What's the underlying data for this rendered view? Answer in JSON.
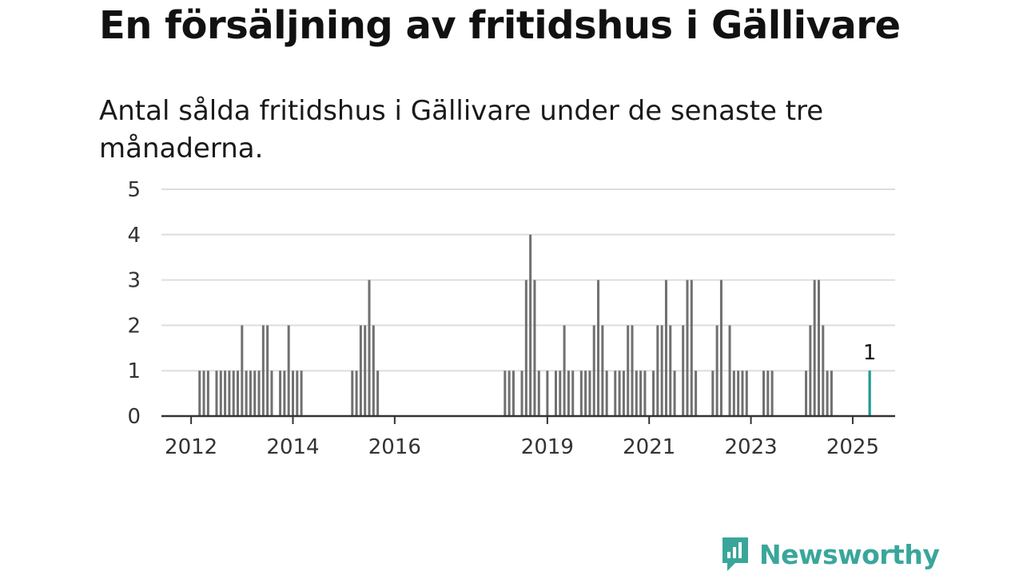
{
  "header": {
    "title": "En försäljning av fritidshus i Gällivare",
    "subtitle": "Antal sålda fritidshus i Gällivare under de senaste tre månaderna."
  },
  "brand": {
    "name": "Newsworthy",
    "icon": "newsworthy-logo-icon",
    "color": "#3aa69b"
  },
  "colors": {
    "bar": "#707070",
    "highlight": "#1a9c95",
    "grid": "#dddddd",
    "axis": "#333333"
  },
  "chart_data": {
    "type": "bar",
    "title": "",
    "xlabel": "",
    "ylabel": "",
    "ylim": [
      0,
      5
    ],
    "yticks": [
      "0",
      "1",
      "2",
      "3",
      "4",
      "5"
    ],
    "xlim": [
      "2011-06",
      "2025-11"
    ],
    "xticks": [
      {
        "label": "2012",
        "date": "2012-01"
      },
      {
        "label": "2014",
        "date": "2014-01"
      },
      {
        "label": "2016",
        "date": "2016-01"
      },
      {
        "label": "2019",
        "date": "2019-01"
      },
      {
        "label": "2021",
        "date": "2021-01"
      },
      {
        "label": "2023",
        "date": "2023-01"
      },
      {
        "label": "2025",
        "date": "2025-01"
      }
    ],
    "grid": true,
    "legend": "none",
    "highlight": {
      "date": "2025-05",
      "value": 1,
      "label": "1"
    },
    "x": [
      "2012-03",
      "2012-04",
      "2012-05",
      "2012-07",
      "2012-08",
      "2012-09",
      "2012-10",
      "2012-11",
      "2012-12",
      "2013-01",
      "2013-02",
      "2013-03",
      "2013-04",
      "2013-05",
      "2013-06",
      "2013-07",
      "2013-08",
      "2013-10",
      "2013-11",
      "2013-12",
      "2014-01",
      "2014-02",
      "2014-03",
      "2015-03",
      "2015-04",
      "2015-05",
      "2015-06",
      "2015-07",
      "2015-08",
      "2015-09",
      "2018-03",
      "2018-04",
      "2018-05",
      "2018-07",
      "2018-08",
      "2018-09",
      "2018-10",
      "2018-11",
      "2019-01",
      "2019-03",
      "2019-04",
      "2019-05",
      "2019-06",
      "2019-07",
      "2019-09",
      "2019-10",
      "2019-11",
      "2019-12",
      "2020-01",
      "2020-02",
      "2020-03",
      "2020-05",
      "2020-06",
      "2020-07",
      "2020-08",
      "2020-09",
      "2020-10",
      "2020-11",
      "2020-12",
      "2021-02",
      "2021-03",
      "2021-04",
      "2021-05",
      "2021-06",
      "2021-07",
      "2021-09",
      "2021-10",
      "2021-11",
      "2021-12",
      "2022-04",
      "2022-05",
      "2022-06",
      "2022-08",
      "2022-09",
      "2022-10",
      "2022-11",
      "2022-12",
      "2023-04",
      "2023-05",
      "2023-06",
      "2024-02",
      "2024-03",
      "2024-04",
      "2024-05",
      "2024-06",
      "2024-07",
      "2024-08",
      "2025-05"
    ],
    "values": [
      1,
      1,
      1,
      1,
      1,
      1,
      1,
      1,
      1,
      2,
      1,
      1,
      1,
      1,
      2,
      2,
      1,
      1,
      1,
      2,
      1,
      1,
      1,
      1,
      1,
      2,
      2,
      3,
      2,
      1,
      1,
      1,
      1,
      1,
      3,
      4,
      3,
      1,
      1,
      1,
      1,
      2,
      1,
      1,
      1,
      1,
      1,
      2,
      3,
      2,
      1,
      1,
      1,
      1,
      2,
      2,
      1,
      1,
      1,
      1,
      2,
      2,
      3,
      2,
      1,
      2,
      3,
      3,
      1,
      1,
      2,
      3,
      2,
      1,
      1,
      1,
      1,
      1,
      1,
      1,
      1,
      2,
      3,
      3,
      2,
      1,
      1,
      1
    ]
  }
}
